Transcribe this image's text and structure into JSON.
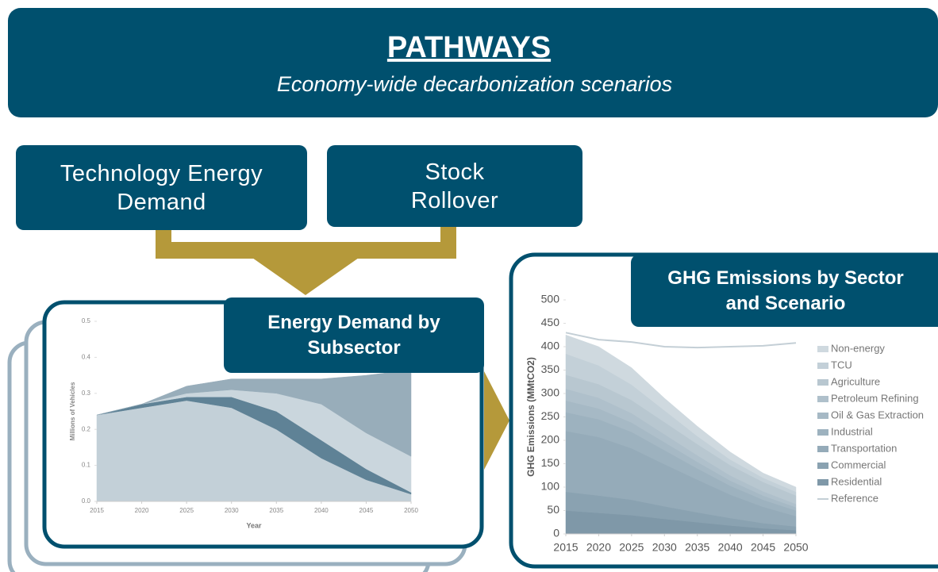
{
  "header": {
    "title": "PATHWAYS",
    "subtitle": "Economy-wide decarbonization scenarios"
  },
  "inputs": [
    "Technology Energy Demand",
    "Stock Rollover"
  ],
  "chart_data": [
    {
      "type": "stacked_area",
      "title": "Energy Demand by Subsector",
      "xlabel": "Year",
      "ylabel": "Millions of Vehicles",
      "x": [
        2015,
        2020,
        2025,
        2030,
        2035,
        2040,
        2045,
        2050
      ],
      "xlim": [
        2015,
        2050
      ],
      "xticks": [
        2015,
        2020,
        2025,
        2030,
        2035,
        2040,
        2045,
        2050
      ],
      "ylim": [
        0,
        0.5
      ],
      "yticks": [
        {
          "value": 0,
          "label": "0.0"
        },
        {
          "value": 0.1,
          "label": "0.1"
        },
        {
          "value": 0.2,
          "label": "0.2"
        },
        {
          "value": 0.3,
          "label": "0.3"
        },
        {
          "value": 0.4,
          "label": "0.4"
        },
        {
          "value": 0.5,
          "label": "0.5"
        }
      ],
      "series": [
        {
          "color": "#c3d0d8",
          "values": [
            0.24,
            0.26,
            0.28,
            0.26,
            0.2,
            0.12,
            0.06,
            0.02
          ]
        },
        {
          "color": "#5f8296",
          "values": [
            0,
            0.01,
            0.01,
            0.03,
            0.05,
            0.05,
            0.03,
            0.005
          ]
        },
        {
          "color": "#cad6dd",
          "values": [
            0,
            0,
            0.01,
            0.02,
            0.05,
            0.1,
            0.1,
            0.1
          ]
        },
        {
          "color": "#98adba",
          "values": [
            0,
            0,
            0.02,
            0.03,
            0.04,
            0.07,
            0.16,
            0.24
          ]
        }
      ]
    },
    {
      "type": "stacked_area",
      "title": "GHG Emissions by Sector and Scenario",
      "ylabel": "GHG Emissions (MMtCO2)",
      "x": [
        2015,
        2020,
        2025,
        2030,
        2035,
        2040,
        2045,
        2050
      ],
      "xlim": [
        2015,
        2050
      ],
      "xticks": [
        2015,
        2020,
        2025,
        2030,
        2035,
        2040,
        2045,
        2050
      ],
      "ylim": [
        0,
        500
      ],
      "yticks": [
        0,
        50,
        100,
        150,
        200,
        250,
        300,
        350,
        400,
        450,
        500
      ],
      "legend": "right",
      "series": [
        {
          "name": "Residential",
          "color": "#7f98a8",
          "values": [
            50,
            45,
            40,
            32,
            25,
            18,
            12,
            8
          ]
        },
        {
          "name": "Commercial",
          "color": "#8aa2b1",
          "values": [
            40,
            37,
            33,
            27,
            21,
            16,
            11,
            8
          ]
        },
        {
          "name": "Transportation",
          "color": "#95abb9",
          "values": [
            130,
            125,
            110,
            90,
            70,
            50,
            35,
            22
          ]
        },
        {
          "name": "Industrial",
          "color": "#9db2bf",
          "values": [
            40,
            38,
            35,
            30,
            24,
            19,
            15,
            12
          ]
        },
        {
          "name": "Oil & Gas Extraction",
          "color": "#a6b9c5",
          "values": [
            25,
            23,
            20,
            17,
            14,
            11,
            9,
            7
          ]
        },
        {
          "name": "Petroleum Refining",
          "color": "#afc0cb",
          "values": [
            25,
            23,
            20,
            17,
            14,
            11,
            9,
            7
          ]
        },
        {
          "name": "Agriculture",
          "color": "#b8c7d0",
          "values": [
            30,
            29,
            28,
            26,
            24,
            22,
            20,
            18
          ]
        },
        {
          "name": "TCU",
          "color": "#c3d0d8",
          "values": [
            45,
            40,
            33,
            25,
            17,
            12,
            9,
            8
          ]
        },
        {
          "name": "Non-energy",
          "color": "#cfd9df",
          "values": [
            40,
            40,
            36,
            26,
            21,
            16,
            10,
            10
          ]
        },
        {
          "name": "Reference",
          "type": "line",
          "color": "#c4cfd6",
          "values": [
            430,
            415,
            410,
            400,
            398,
            400,
            402,
            408
          ]
        }
      ]
    }
  ]
}
